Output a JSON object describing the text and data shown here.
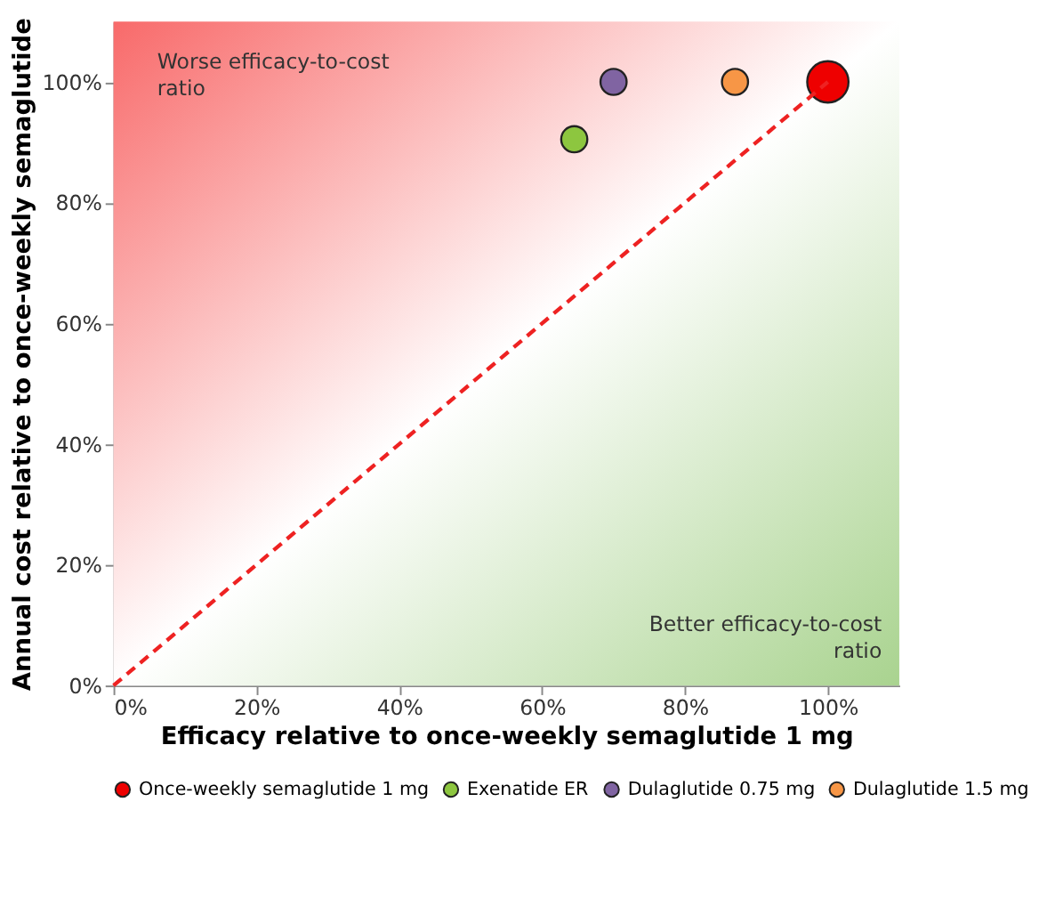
{
  "chart_data": {
    "type": "bubble",
    "xlabel": "Efficacy relative to once-weekly semaglutide 1 mg",
    "ylabel": "Annual cost relative to once-weekly semaglutide",
    "xlim": [
      0,
      110
    ],
    "ylim": [
      0,
      110
    ],
    "xticks": [
      {
        "value": 0,
        "label": "0%"
      },
      {
        "value": 20,
        "label": "20%"
      },
      {
        "value": 40,
        "label": "40%"
      },
      {
        "value": 60,
        "label": "60%"
      },
      {
        "value": 80,
        "label": "80%"
      },
      {
        "value": 100,
        "label": "100%"
      }
    ],
    "yticks": [
      {
        "value": 0,
        "label": "0%"
      },
      {
        "value": 20,
        "label": "20%"
      },
      {
        "value": 40,
        "label": "40%"
      },
      {
        "value": 60,
        "label": "60%"
      },
      {
        "value": 80,
        "label": "80%"
      },
      {
        "value": 100,
        "label": "100%"
      }
    ],
    "grid": false,
    "legend": "bottom",
    "marker": "circle",
    "annotations": [
      "Worse efficacy-to-cost ratio",
      "Better efficacy-to-cost ratio"
    ],
    "series": [
      {
        "name": "Once-weekly semaglutide 1 mg",
        "color": "#ee0000",
        "x": [
          100
        ],
        "values": [
          100
        ],
        "sizes": [
          1
        ]
      },
      {
        "name": "Exenatide ER",
        "color": "#8dc63f",
        "x": [
          64.5
        ],
        "values": [
          90.5
        ],
        "sizes": [
          0.4
        ]
      },
      {
        "name": "Dulaglutide 0.75 mg",
        "color": "#8064a2",
        "x": [
          70
        ],
        "values": [
          100
        ],
        "sizes": [
          0.4
        ]
      },
      {
        "name": "Dulaglutide 1.5 mg",
        "color": "#f79646",
        "x": [
          87
        ],
        "values": [
          100
        ],
        "sizes": [
          0.4
        ]
      },
      {
        "type": "line",
        "color": "#ee2222",
        "line_style": "dashed",
        "marker": "none",
        "x": [
          0,
          100
        ],
        "values": [
          0,
          100
        ]
      }
    ]
  }
}
